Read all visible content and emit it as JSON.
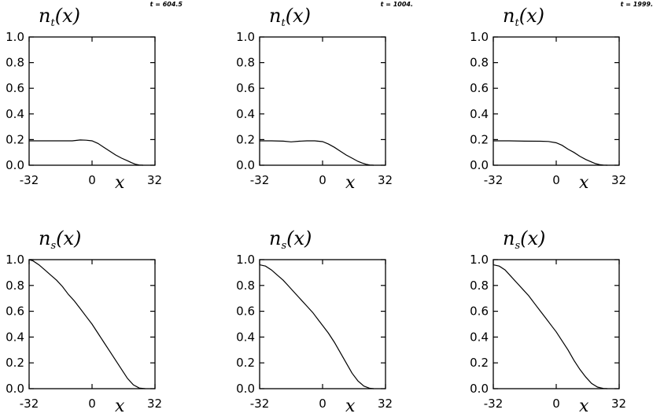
{
  "chart_data": [
    {
      "type": "line",
      "title_main": "n",
      "title_sub": "t",
      "title_suffix": "(x)",
      "time_label": "t = 604.5",
      "xlabel": "x",
      "xlim": [
        -32,
        32
      ],
      "ylim": [
        0,
        1
      ],
      "x_ticks": [
        "-32",
        "0",
        "32"
      ],
      "y_ticks": [
        "0.0",
        "0.2",
        "0.4",
        "0.6",
        "0.8",
        "1.0"
      ],
      "series": [
        {
          "x": [
            -32,
            -24,
            -16,
            -10,
            -6,
            -3,
            0,
            3,
            6,
            9,
            12,
            15,
            18,
            20,
            22,
            24,
            26
          ],
          "y": [
            0.19,
            0.19,
            0.19,
            0.19,
            0.197,
            0.195,
            0.19,
            0.17,
            0.14,
            0.11,
            0.08,
            0.055,
            0.035,
            0.02,
            0.008,
            0.002,
            0
          ]
        }
      ]
    },
    {
      "type": "line",
      "title_main": "n",
      "title_sub": "t",
      "title_suffix": "(x)",
      "time_label": "t = 1004.",
      "xlabel": "x",
      "xlim": [
        -32,
        32
      ],
      "ylim": [
        0,
        1
      ],
      "x_ticks": [
        "-32",
        "0",
        "32"
      ],
      "y_ticks": [
        "0.0",
        "0.2",
        "0.4",
        "0.6",
        "0.8",
        "1.0"
      ],
      "series": [
        {
          "x": [
            -32,
            -26,
            -20,
            -16,
            -12,
            -8,
            -4,
            0,
            3,
            6,
            9,
            12,
            15,
            18,
            20,
            22,
            24,
            26
          ],
          "y": [
            0.19,
            0.19,
            0.188,
            0.182,
            0.187,
            0.19,
            0.19,
            0.184,
            0.165,
            0.14,
            0.11,
            0.08,
            0.055,
            0.03,
            0.018,
            0.008,
            0.002,
            0
          ]
        }
      ]
    },
    {
      "type": "line",
      "title_main": "n",
      "title_sub": "t",
      "title_suffix": "(x)",
      "time_label": "t = 1999.",
      "xlabel": "x",
      "xlim": [
        -32,
        32
      ],
      "ylim": [
        0,
        1
      ],
      "x_ticks": [
        "-32",
        "0",
        "32"
      ],
      "y_ticks": [
        "0.0",
        "0.2",
        "0.4",
        "0.6",
        "0.8",
        "1.0"
      ],
      "series": [
        {
          "x": [
            -32,
            -24,
            -16,
            -8,
            -4,
            0,
            3,
            6,
            9,
            12,
            15,
            18,
            20,
            22,
            24,
            26
          ],
          "y": [
            0.19,
            0.19,
            0.188,
            0.187,
            0.185,
            0.175,
            0.155,
            0.125,
            0.1,
            0.07,
            0.045,
            0.025,
            0.012,
            0.005,
            0.001,
            0
          ]
        }
      ]
    },
    {
      "type": "line",
      "title_main": "n",
      "title_sub": "s",
      "title_suffix": "(x)",
      "xlabel": "x",
      "xlim": [
        -32,
        32
      ],
      "ylim": [
        0,
        1
      ],
      "x_ticks": [
        "-32",
        "0",
        "32"
      ],
      "y_ticks": [
        "0.0",
        "0.2",
        "0.4",
        "0.6",
        "0.8",
        "1.0"
      ],
      "series": [
        {
          "x": [
            -32,
            -30,
            -27,
            -24,
            -21,
            -18,
            -15,
            -12,
            -9,
            -6,
            -3,
            0,
            3,
            6,
            9,
            12,
            15,
            18,
            21,
            24,
            27
          ],
          "y": [
            1.0,
            0.99,
            0.96,
            0.92,
            0.88,
            0.84,
            0.79,
            0.73,
            0.68,
            0.62,
            0.56,
            0.5,
            0.43,
            0.36,
            0.29,
            0.22,
            0.15,
            0.08,
            0.03,
            0.005,
            0
          ]
        }
      ]
    },
    {
      "type": "line",
      "title_main": "n",
      "title_sub": "s",
      "title_suffix": "(x)",
      "xlabel": "x",
      "xlim": [
        -32,
        32
      ],
      "ylim": [
        0,
        1
      ],
      "x_ticks": [
        "-32",
        "0",
        "32"
      ],
      "y_ticks": [
        "0.0",
        "0.2",
        "0.4",
        "0.6",
        "0.8",
        "1.0"
      ],
      "series": [
        {
          "x": [
            -32,
            -29,
            -26,
            -23,
            -20,
            -17,
            -14,
            -11,
            -8,
            -5,
            -2,
            0,
            3,
            6,
            9,
            12,
            15,
            18,
            21,
            24,
            26
          ],
          "y": [
            0.96,
            0.95,
            0.92,
            0.88,
            0.84,
            0.79,
            0.74,
            0.69,
            0.64,
            0.59,
            0.53,
            0.49,
            0.43,
            0.36,
            0.28,
            0.2,
            0.12,
            0.06,
            0.02,
            0.003,
            0
          ]
        }
      ]
    },
    {
      "type": "line",
      "title_main": "n",
      "title_sub": "s",
      "title_suffix": "(x)",
      "xlabel": "x",
      "xlim": [
        -32,
        32
      ],
      "ylim": [
        0,
        1
      ],
      "x_ticks": [
        "-32",
        "0",
        "32"
      ],
      "y_ticks": [
        "0.0",
        "0.2",
        "0.4",
        "0.6",
        "0.8",
        "1.0"
      ],
      "series": [
        {
          "x": [
            -32,
            -29,
            -26,
            -23,
            -20,
            -17,
            -14,
            -11,
            -8,
            -5,
            -2,
            0,
            3,
            6,
            9,
            12,
            15,
            18,
            21,
            24,
            26
          ],
          "y": [
            0.96,
            0.95,
            0.92,
            0.87,
            0.82,
            0.77,
            0.72,
            0.66,
            0.6,
            0.54,
            0.48,
            0.44,
            0.37,
            0.3,
            0.22,
            0.15,
            0.09,
            0.04,
            0.012,
            0.002,
            0
          ]
        }
      ]
    }
  ]
}
